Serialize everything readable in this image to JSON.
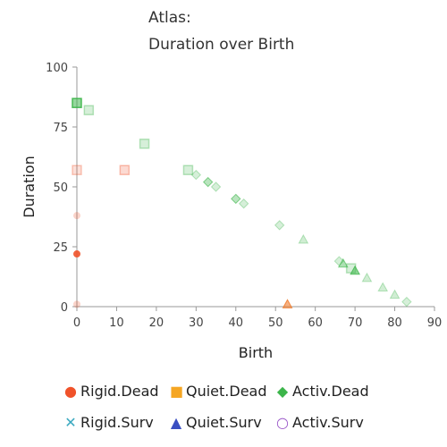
{
  "chart_data": {
    "type": "scatter",
    "title_line1": "Atlas:",
    "title_line2": "Duration over Birth",
    "xlabel": "Birth",
    "ylabel": "Duration",
    "xlim": [
      0,
      90
    ],
    "ylim": [
      0,
      100
    ],
    "xticks": [
      "0",
      "10",
      "20",
      "30",
      "40",
      "50",
      "60",
      "70",
      "80",
      "90"
    ],
    "yticks": [
      "0",
      "25",
      "50",
      "75",
      "100"
    ],
    "grid": false,
    "legend_placement": "bottom",
    "series": [
      {
        "name": "Rigid.Dead",
        "marker": "circle",
        "color": "#f0522a",
        "points": [
          [
            0,
            22
          ],
          [
            0,
            38
          ],
          [
            0,
            1
          ]
        ]
      },
      {
        "name": "Quiet.Dead",
        "marker": "square",
        "color": "#f5a623",
        "points": [
          [
            0,
            57
          ],
          [
            12,
            57
          ]
        ]
      },
      {
        "name": "Activ.Dead",
        "marker": "diamond",
        "color": "#3cb54a",
        "points": [
          [
            0,
            85
          ],
          [
            3,
            81
          ],
          [
            33,
            52
          ],
          [
            40,
            45
          ],
          [
            70,
            15
          ]
        ]
      },
      {
        "name": "Rigid.Surv",
        "marker": "x",
        "color": "#3ba9c0",
        "points": []
      },
      {
        "name": "Quiet.Surv",
        "marker": "triangle",
        "color": "#3a4fc2",
        "points": [
          [
            53,
            1
          ]
        ]
      },
      {
        "name": "Activ.Surv",
        "marker": "circle-open",
        "color": "#9b59c9",
        "points": []
      }
    ],
    "overlay_points": [
      {
        "x": 0,
        "y": 85,
        "shape": "square",
        "color": "#3cb54a",
        "alpha": 0.9
      },
      {
        "x": 3,
        "y": 82,
        "shape": "square",
        "color": "#3cb54a",
        "alpha": 0.35
      },
      {
        "x": 17,
        "y": 68,
        "shape": "square",
        "color": "#3cb54a",
        "alpha": 0.35
      },
      {
        "x": 28,
        "y": 57,
        "shape": "square",
        "color": "#3cb54a",
        "alpha": 0.35
      },
      {
        "x": 30,
        "y": 55,
        "shape": "diamond",
        "color": "#3cb54a",
        "alpha": 0.35
      },
      {
        "x": 33,
        "y": 52,
        "shape": "diamond",
        "color": "#3cb54a",
        "alpha": 0.6
      },
      {
        "x": 35,
        "y": 50,
        "shape": "diamond",
        "color": "#3cb54a",
        "alpha": 0.35
      },
      {
        "x": 40,
        "y": 45,
        "shape": "diamond",
        "color": "#3cb54a",
        "alpha": 0.6
      },
      {
        "x": 42,
        "y": 43,
        "shape": "diamond",
        "color": "#3cb54a",
        "alpha": 0.35
      },
      {
        "x": 51,
        "y": 34,
        "shape": "diamond",
        "color": "#3cb54a",
        "alpha": 0.35
      },
      {
        "x": 57,
        "y": 28,
        "shape": "triangle",
        "color": "#3cb54a",
        "alpha": 0.35
      },
      {
        "x": 66,
        "y": 19,
        "shape": "diamond",
        "color": "#3cb54a",
        "alpha": 0.35
      },
      {
        "x": 67,
        "y": 18,
        "shape": "triangle",
        "color": "#3cb54a",
        "alpha": 0.6
      },
      {
        "x": 69,
        "y": 16,
        "shape": "square",
        "color": "#3cb54a",
        "alpha": 0.35
      },
      {
        "x": 70,
        "y": 15,
        "shape": "triangle",
        "color": "#3cb54a",
        "alpha": 0.8
      },
      {
        "x": 73,
        "y": 12,
        "shape": "triangle",
        "color": "#3cb54a",
        "alpha": 0.35
      },
      {
        "x": 77,
        "y": 8,
        "shape": "triangle",
        "color": "#3cb54a",
        "alpha": 0.35
      },
      {
        "x": 80,
        "y": 5,
        "shape": "triangle",
        "color": "#3cb54a",
        "alpha": 0.35
      },
      {
        "x": 83,
        "y": 2,
        "shape": "diamond",
        "color": "#3cb54a",
        "alpha": 0.35
      },
      {
        "x": 0,
        "y": 57,
        "shape": "square",
        "color": "#f0522a",
        "alpha": 0.3
      },
      {
        "x": 12,
        "y": 57,
        "shape": "square",
        "color": "#f0522a",
        "alpha": 0.35
      },
      {
        "x": 0,
        "y": 38,
        "shape": "circle",
        "color": "#f0522a",
        "alpha": 0.25
      },
      {
        "x": 0,
        "y": 1,
        "shape": "circle",
        "color": "#f0522a",
        "alpha": 0.25
      },
      {
        "x": 0,
        "y": 22,
        "shape": "circle",
        "color": "#f0522a",
        "alpha": 0.9
      },
      {
        "x": 53,
        "y": 1,
        "shape": "triangle",
        "color": "#f07a2a",
        "alpha": 0.85
      }
    ]
  }
}
